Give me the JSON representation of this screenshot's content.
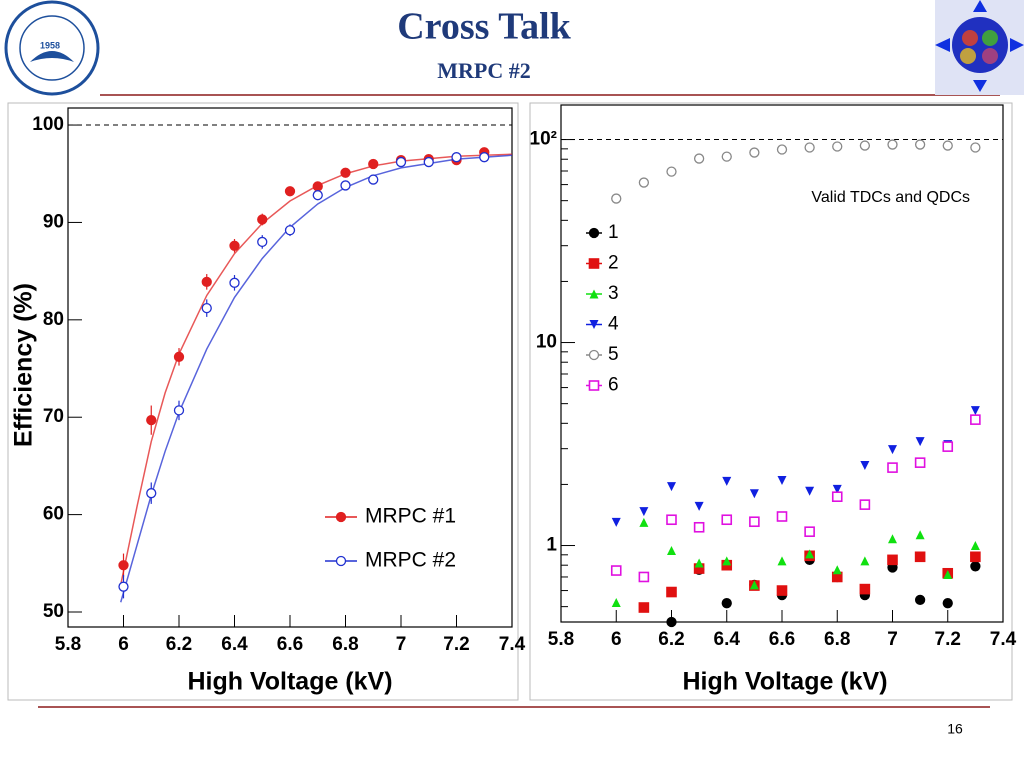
{
  "header": {
    "title": "Cross Talk",
    "subtitle": "MRPC #2",
    "logo_year": "1958"
  },
  "page_number": "16",
  "chart_data": [
    {
      "type": "scatter",
      "x_label": "High Voltage (kV)",
      "y_label": "Efficiency (%)",
      "xlim": [
        5.8,
        7.4
      ],
      "ylim": [
        48.46,
        101.75
      ],
      "xticks": [
        5.8,
        6,
        6.2,
        6.4,
        6.6,
        6.8,
        7,
        7.2,
        7.4
      ],
      "yticks": [
        50,
        60,
        70,
        80,
        90,
        100
      ],
      "reference_line": 100,
      "log_y": false,
      "series": [
        {
          "name": "MRPC #1",
          "color": "#e02020",
          "marker": "circle-filled",
          "x": [
            6,
            6.1,
            6.2,
            6.3,
            6.4,
            6.5,
            6.6,
            6.7,
            6.8,
            6.9,
            7.0,
            7.1,
            7.2,
            7.3
          ],
          "values": [
            54.8,
            69.7,
            76.2,
            83.9,
            87.6,
            90.3,
            93.2,
            93.7,
            95.1,
            96.0,
            96.4,
            96.5,
            96.4,
            97.2
          ],
          "errors": [
            1.2,
            1.5,
            0.9,
            0.8,
            0.7,
            0.6,
            0.5,
            0.5,
            0.4,
            0.4,
            0.4,
            0.4,
            0.4,
            0.3
          ],
          "fit_x": [
            5.99,
            6.05,
            6.1,
            6.15,
            6.2,
            6.3,
            6.4,
            6.5,
            6.6,
            6.7,
            6.8,
            6.9,
            7.0,
            7.2,
            7.4
          ],
          "fit_values": [
            52.8,
            61,
            67.5,
            72.5,
            76.5,
            82.5,
            86.8,
            89.9,
            92.2,
            93.8,
            95.0,
            95.8,
            96.3,
            96.8,
            97.0
          ]
        },
        {
          "name": "MRPC #2",
          "color": "#2030d0",
          "marker": "circle-open",
          "x": [
            6,
            6.1,
            6.2,
            6.3,
            6.4,
            6.5,
            6.6,
            6.7,
            6.8,
            6.9,
            7.0,
            7.1,
            7.2,
            7.3
          ],
          "values": [
            52.6,
            62.2,
            70.7,
            81.2,
            83.8,
            88.0,
            89.2,
            92.8,
            93.8,
            94.4,
            96.2,
            96.2,
            96.7,
            96.7
          ],
          "errors": [
            1.2,
            1.1,
            1.0,
            0.9,
            0.8,
            0.7,
            0.6,
            0.5,
            0.4,
            0.4,
            0.4,
            0.4,
            0.3,
            0.3
          ],
          "fit_x": [
            5.99,
            6.05,
            6.1,
            6.15,
            6.2,
            6.3,
            6.4,
            6.5,
            6.6,
            6.7,
            6.8,
            6.9,
            7.0,
            7.2,
            7.4
          ],
          "fit_values": [
            51,
            57,
            62,
            66.5,
            70.5,
            77,
            82.3,
            86.3,
            89.5,
            91.9,
            93.6,
            94.8,
            95.6,
            96.5,
            96.9
          ]
        }
      ]
    },
    {
      "type": "scatter",
      "x_label": "High Voltage (kV)",
      "annotation": "Valid TDCs and QDCs",
      "xlim": [
        5.8,
        7.4
      ],
      "ylim": [
        0.42,
        148
      ],
      "xticks": [
        5.8,
        6,
        6.2,
        6.4,
        6.6,
        6.8,
        7,
        7.2,
        7.4
      ],
      "yticks": [
        1,
        10,
        {
          "value": 100,
          "label": "10²"
        }
      ],
      "reference_line": 100,
      "log_y": true,
      "series": [
        {
          "name": "1",
          "color": "#000000",
          "marker": "circle-filled",
          "x": [
            6,
            6.1,
            6.2,
            6.3,
            6.4,
            6.5,
            6.6,
            6.7,
            6.8,
            6.9,
            7.0,
            7.1,
            7.2,
            7.3
          ],
          "values": [
            null,
            null,
            0.42,
            0.76,
            0.52,
            0.64,
            0.57,
            0.85,
            0.7,
            0.57,
            0.78,
            0.54,
            0.52,
            0.79
          ]
        },
        {
          "name": "2",
          "color": "#e01010",
          "marker": "square-filled",
          "x": [
            6,
            6.1,
            6.2,
            6.3,
            6.4,
            6.5,
            6.6,
            6.7,
            6.8,
            6.9,
            7.0,
            7.1,
            7.2,
            7.3
          ],
          "values": [
            null,
            0.495,
            0.59,
            0.77,
            0.8,
            0.635,
            0.6,
            0.89,
            0.7,
            0.61,
            0.85,
            0.88,
            0.73,
            0.88
          ]
        },
        {
          "name": "3",
          "color": "#10e010",
          "marker": "triangle-up",
          "x": [
            6,
            6.1,
            6.2,
            6.3,
            6.4,
            6.5,
            6.6,
            6.7,
            6.8,
            6.9,
            7.0,
            7.1,
            7.2,
            7.3
          ],
          "values": [
            0.524,
            1.3,
            0.945,
            0.82,
            0.84,
            0.64,
            0.84,
            0.91,
            0.76,
            0.84,
            1.08,
            1.13,
            0.72,
            1.0
          ]
        },
        {
          "name": "4",
          "color": "#1020e0",
          "marker": "triangle-down",
          "x": [
            6,
            6.1,
            6.2,
            6.3,
            6.4,
            6.5,
            6.6,
            6.7,
            6.8,
            6.9,
            7.0,
            7.1,
            7.2,
            7.3
          ],
          "values": [
            1.3,
            1.47,
            1.95,
            1.56,
            2.07,
            1.8,
            2.09,
            1.85,
            1.89,
            2.48,
            2.97,
            3.25,
            3.14,
            4.62
          ]
        },
        {
          "name": "5",
          "color": "#888888",
          "marker": "circle-open",
          "x": [
            6,
            6.1,
            6.2,
            6.3,
            6.4,
            6.5,
            6.6,
            6.7,
            6.8,
            6.9,
            7.0,
            7.1,
            7.2,
            7.3
          ],
          "values": [
            51.2,
            61.4,
            69.5,
            80.6,
            82.4,
            86.3,
            89.3,
            91.4,
            92.4,
            93.4,
            94.5,
            94.5,
            93.4,
            91.4
          ]
        },
        {
          "name": "6",
          "color": "#e010e0",
          "marker": "square-open",
          "x": [
            6,
            6.1,
            6.2,
            6.3,
            6.4,
            6.5,
            6.6,
            6.7,
            6.8,
            6.9,
            7.0,
            7.1,
            7.2,
            7.3
          ],
          "values": [
            0.753,
            0.7,
            1.34,
            1.23,
            1.34,
            1.31,
            1.39,
            1.17,
            1.74,
            1.59,
            2.42,
            2.56,
            3.07,
            4.17
          ]
        }
      ]
    }
  ]
}
